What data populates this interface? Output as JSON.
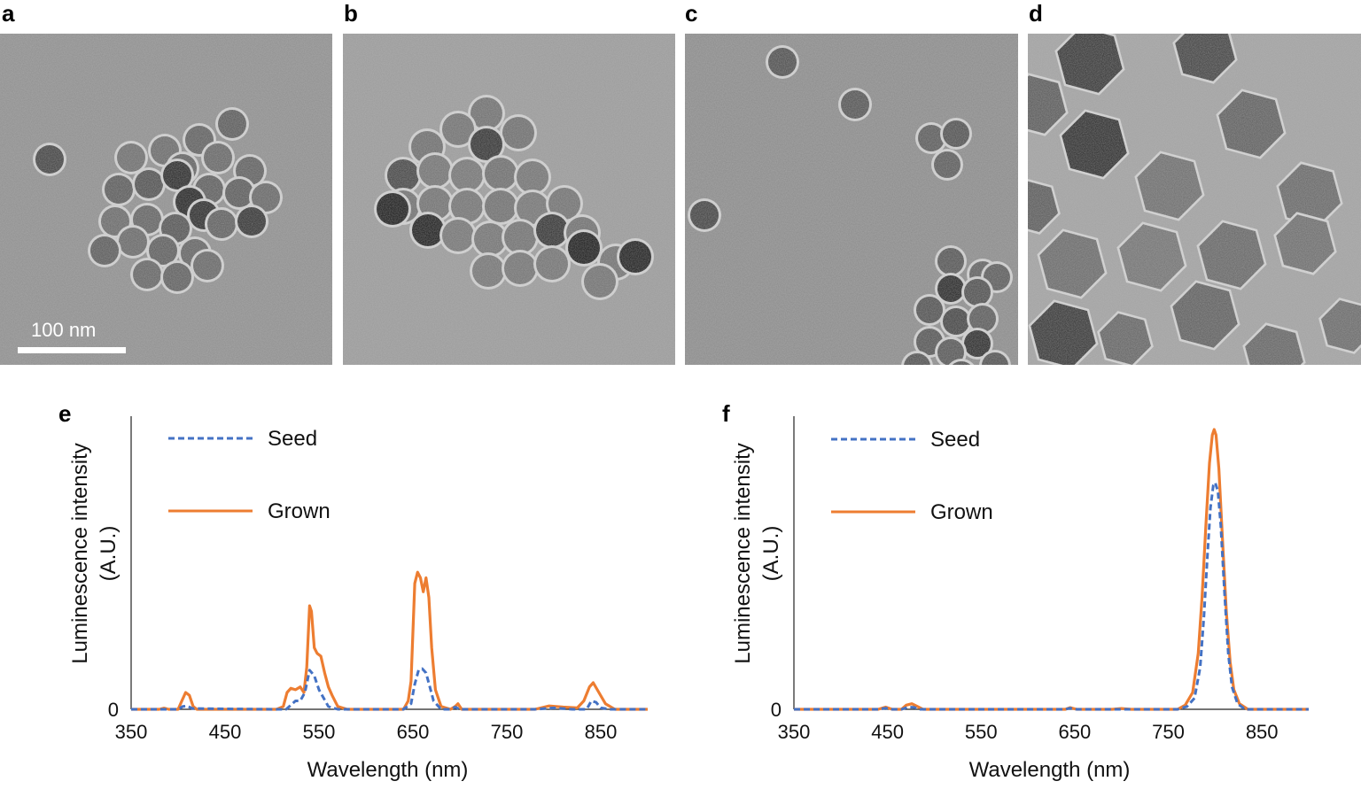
{
  "panels": {
    "a": "a",
    "b": "b",
    "c": "c",
    "d": "d",
    "e": "e",
    "f": "f"
  },
  "scale_bar": {
    "label": "100 nm"
  },
  "chart_data": [
    {
      "type": "line",
      "panel": "e",
      "xlabel": "Wavelength (nm)",
      "ylabel": "Luminescence intensity\n(A.U.)",
      "xlim": [
        350,
        900
      ],
      "ylim": [
        0,
        1
      ],
      "x_ticks": [
        350,
        450,
        550,
        650,
        750,
        850
      ],
      "y_ticks": [
        0
      ],
      "legend": "top-left",
      "series": [
        {
          "name": "Seed",
          "style": "dashed",
          "color": "#4472C4",
          "points": [
            [
              350,
              0
            ],
            [
              400,
              0
            ],
            [
              405,
              0.01
            ],
            [
              410,
              0.012
            ],
            [
              415,
              0.003
            ],
            [
              500,
              0
            ],
            [
              515,
              0
            ],
            [
              520,
              0.015
            ],
            [
              525,
              0.03
            ],
            [
              530,
              0.03
            ],
            [
              535,
              0.06
            ],
            [
              540,
              0.14
            ],
            [
              545,
              0.12
            ],
            [
              550,
              0.07
            ],
            [
              555,
              0.04
            ],
            [
              560,
              0.01
            ],
            [
              570,
              0
            ],
            [
              640,
              0
            ],
            [
              648,
              0.02
            ],
            [
              652,
              0.09
            ],
            [
              656,
              0.14
            ],
            [
              660,
              0.145
            ],
            [
              664,
              0.13
            ],
            [
              668,
              0.08
            ],
            [
              672,
              0.03
            ],
            [
              680,
              0
            ],
            [
              690,
              0
            ],
            [
              695,
              0.008
            ],
            [
              700,
              0
            ],
            [
              780,
              0
            ],
            [
              800,
              0.005
            ],
            [
              820,
              0
            ],
            [
              835,
              0
            ],
            [
              840,
              0.03
            ],
            [
              845,
              0.025
            ],
            [
              850,
              0.005
            ],
            [
              860,
              0
            ],
            [
              900,
              0
            ]
          ]
        },
        {
          "name": "Grown",
          "style": "solid",
          "color": "#ED7D31",
          "points": [
            [
              350,
              0
            ],
            [
              380,
              0
            ],
            [
              385,
              0.004
            ],
            [
              390,
              0
            ],
            [
              400,
              0
            ],
            [
              404,
              0.03
            ],
            [
              408,
              0.06
            ],
            [
              412,
              0.05
            ],
            [
              416,
              0.01
            ],
            [
              420,
              0
            ],
            [
              505,
              0
            ],
            [
              512,
              0.01
            ],
            [
              516,
              0.06
            ],
            [
              520,
              0.075
            ],
            [
              525,
              0.07
            ],
            [
              530,
              0.08
            ],
            [
              534,
              0.06
            ],
            [
              537,
              0.15
            ],
            [
              540,
              0.37
            ],
            [
              542,
              0.35
            ],
            [
              545,
              0.22
            ],
            [
              548,
              0.2
            ],
            [
              552,
              0.19
            ],
            [
              556,
              0.13
            ],
            [
              560,
              0.08
            ],
            [
              564,
              0.05
            ],
            [
              570,
              0.01
            ],
            [
              580,
              0
            ],
            [
              640,
              0
            ],
            [
              645,
              0.03
            ],
            [
              648,
              0.1
            ],
            [
              652,
              0.45
            ],
            [
              655,
              0.49
            ],
            [
              658,
              0.47
            ],
            [
              661,
              0.42
            ],
            [
              664,
              0.47
            ],
            [
              667,
              0.4
            ],
            [
              670,
              0.22
            ],
            [
              674,
              0.07
            ],
            [
              680,
              0.01
            ],
            [
              690,
              0
            ],
            [
              695,
              0.01
            ],
            [
              698,
              0.02
            ],
            [
              702,
              0
            ],
            [
              780,
              0
            ],
            [
              795,
              0.012
            ],
            [
              810,
              0.008
            ],
            [
              825,
              0.005
            ],
            [
              832,
              0.03
            ],
            [
              838,
              0.08
            ],
            [
              842,
              0.095
            ],
            [
              848,
              0.06
            ],
            [
              855,
              0.02
            ],
            [
              865,
              0
            ],
            [
              900,
              0
            ]
          ]
        }
      ]
    },
    {
      "type": "line",
      "panel": "f",
      "xlabel": "Wavelength (nm)",
      "ylabel": "Luminescence intensity\n(A.U.)",
      "xlim": [
        350,
        900
      ],
      "ylim": [
        0,
        1
      ],
      "x_ticks": [
        350,
        450,
        550,
        650,
        750,
        850
      ],
      "y_ticks": [
        0
      ],
      "legend": "top-left",
      "series": [
        {
          "name": "Seed",
          "style": "dashed",
          "color": "#4472C4",
          "points": [
            [
              350,
              0
            ],
            [
              440,
              0
            ],
            [
              448,
              0.004
            ],
            [
              455,
              0
            ],
            [
              465,
              0
            ],
            [
              472,
              0.008
            ],
            [
              478,
              0.007
            ],
            [
              485,
              0
            ],
            [
              640,
              0
            ],
            [
              645,
              0.004
            ],
            [
              652,
              0
            ],
            [
              760,
              0
            ],
            [
              770,
              0.01
            ],
            [
              778,
              0.04
            ],
            [
              784,
              0.15
            ],
            [
              788,
              0.33
            ],
            [
              792,
              0.56
            ],
            [
              795,
              0.72
            ],
            [
              798,
              0.8
            ],
            [
              800,
              0.81
            ],
            [
              803,
              0.78
            ],
            [
              806,
              0.66
            ],
            [
              810,
              0.42
            ],
            [
              814,
              0.2
            ],
            [
              818,
              0.08
            ],
            [
              824,
              0.02
            ],
            [
              832,
              0
            ],
            [
              900,
              0
            ]
          ]
        },
        {
          "name": "Grown",
          "style": "solid",
          "color": "#ED7D31",
          "points": [
            [
              350,
              0
            ],
            [
              440,
              0
            ],
            [
              448,
              0.008
            ],
            [
              455,
              0
            ],
            [
              465,
              0
            ],
            [
              470,
              0.015
            ],
            [
              476,
              0.02
            ],
            [
              482,
              0.01
            ],
            [
              488,
              0
            ],
            [
              640,
              0
            ],
            [
              645,
              0.006
            ],
            [
              652,
              0
            ],
            [
              690,
              0
            ],
            [
              700,
              0.003
            ],
            [
              710,
              0
            ],
            [
              760,
              0
            ],
            [
              768,
              0.015
            ],
            [
              776,
              0.06
            ],
            [
              782,
              0.2
            ],
            [
              786,
              0.4
            ],
            [
              790,
              0.65
            ],
            [
              794,
              0.88
            ],
            [
              797,
              0.98
            ],
            [
              799,
              1.0
            ],
            [
              801,
              0.98
            ],
            [
              804,
              0.86
            ],
            [
              808,
              0.6
            ],
            [
              812,
              0.35
            ],
            [
              816,
              0.17
            ],
            [
              820,
              0.07
            ],
            [
              826,
              0.02
            ],
            [
              835,
              0
            ],
            [
              900,
              0
            ]
          ]
        }
      ]
    }
  ]
}
